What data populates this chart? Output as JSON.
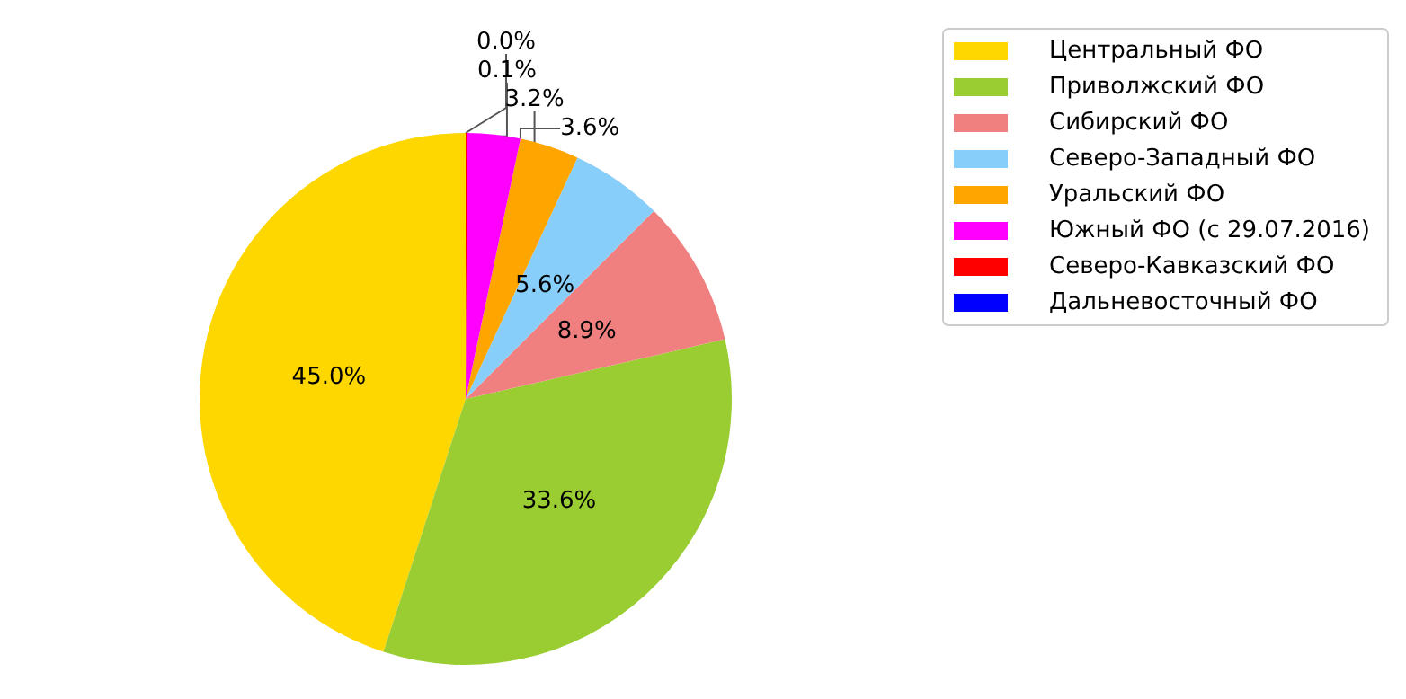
{
  "chart_data": {
    "type": "pie",
    "categories": [
      "Центральный ФО",
      "Приволжский ФО",
      "Сибирский ФО",
      "Северо-Западный ФО",
      "Уральский ФО",
      "Южный ФО (с 29.07.2016)",
      "Северо-Кавказский ФО",
      "Дальневосточный ФО"
    ],
    "values": [
      45.0,
      33.6,
      8.9,
      5.6,
      3.6,
      3.2,
      0.1,
      0.0
    ],
    "colors": [
      "#ffd700",
      "#9acd32",
      "#f08080",
      "#87cefa",
      "#ffa500",
      "#ff00ff",
      "#ff0000",
      "#0000ff"
    ],
    "value_labels": [
      "45.0%",
      "33.6%",
      "8.9%",
      "5.6%",
      "3.6%",
      "3.2%",
      "0.1%",
      "0.0%"
    ],
    "legend": "top right"
  }
}
